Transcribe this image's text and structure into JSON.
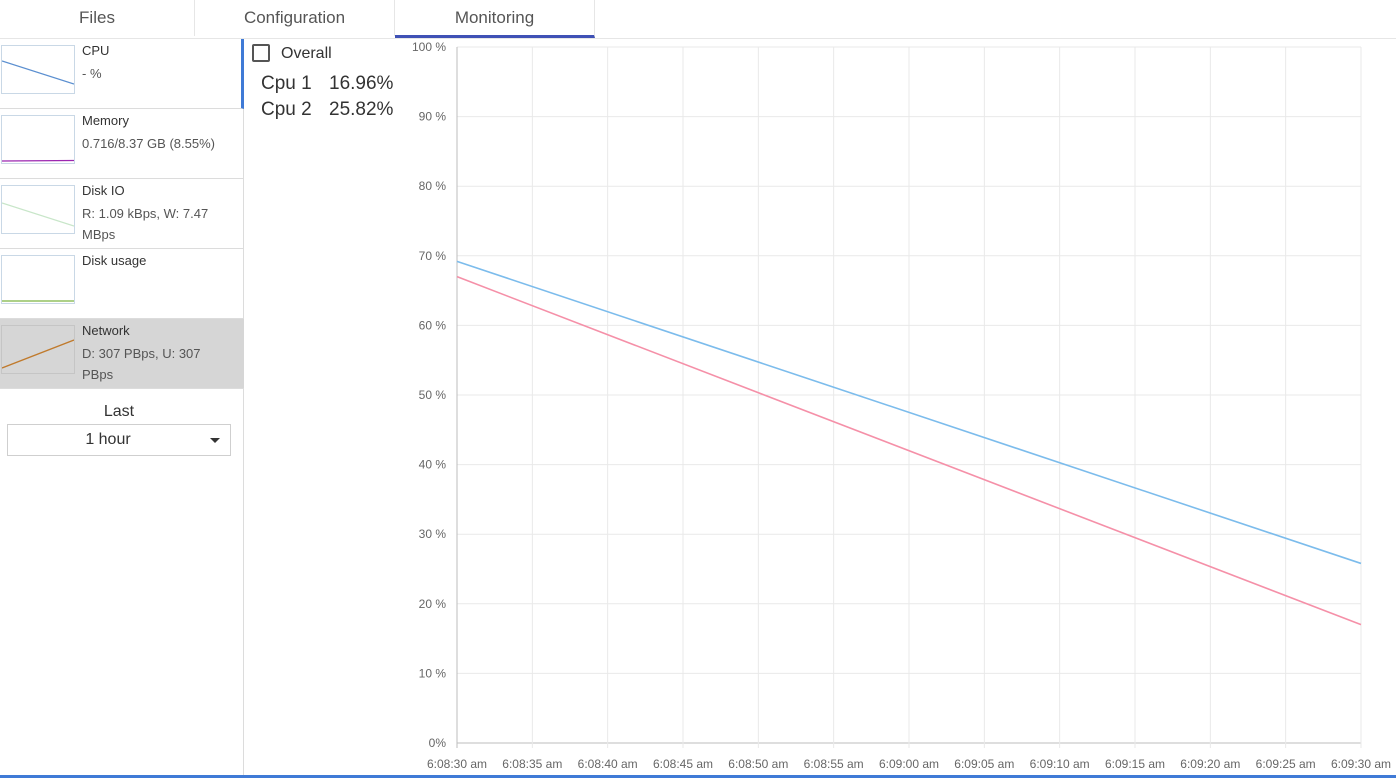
{
  "tabs": [
    {
      "label": "Files"
    },
    {
      "label": "Configuration"
    },
    {
      "label": "Monitoring"
    }
  ],
  "sidebar": {
    "metrics": [
      {
        "title": "CPU",
        "value": "- %",
        "color": "#5b8fd0"
      },
      {
        "title": "Memory",
        "value": "0.716/8.37 GB (8.55%)",
        "color": "#9c27b0"
      },
      {
        "title": "Disk IO",
        "value": "R: 1.09 kBps, W: 7.47 MBps",
        "color": "#c8e6c9"
      },
      {
        "title": "Disk usage",
        "value": "",
        "color": "#7cb342"
      },
      {
        "title": "Network",
        "value": "D: 307 PBps, U: 307 PBps",
        "color": "#c07a2c"
      }
    ],
    "last_label": "Last",
    "range": {
      "selected": "1 hour"
    }
  },
  "cpu_panel": {
    "overall_label": "Overall",
    "cpus": [
      {
        "name": "Cpu 1",
        "value": "16.96%"
      },
      {
        "name": "Cpu 2",
        "value": "25.82%"
      }
    ]
  },
  "chart_data": {
    "type": "line",
    "x": [
      "6:08:30 am",
      "6:08:35 am",
      "6:08:40 am",
      "6:08:45 am",
      "6:08:50 am",
      "6:08:55 am",
      "6:09:00 am",
      "6:09:05 am",
      "6:09:10 am",
      "6:09:15 am",
      "6:09:20 am",
      "6:09:25 am",
      "6:09:30 am"
    ],
    "yticks": [
      "0%",
      "10 %",
      "20 %",
      "30 %",
      "40 %",
      "50 %",
      "60 %",
      "70 %",
      "80 %",
      "90 %",
      "100 %"
    ],
    "ylim": [
      0,
      100
    ],
    "grid": true,
    "series": [
      {
        "color": "#7cbcec",
        "x": [
          "6:08:30 am",
          "6:09:30 am"
        ],
        "values": [
          69.2,
          25.8
        ]
      },
      {
        "color": "#f590a8",
        "x": [
          "6:08:30 am",
          "6:09:30 am"
        ],
        "values": [
          67.0,
          17.0
        ]
      }
    ]
  }
}
